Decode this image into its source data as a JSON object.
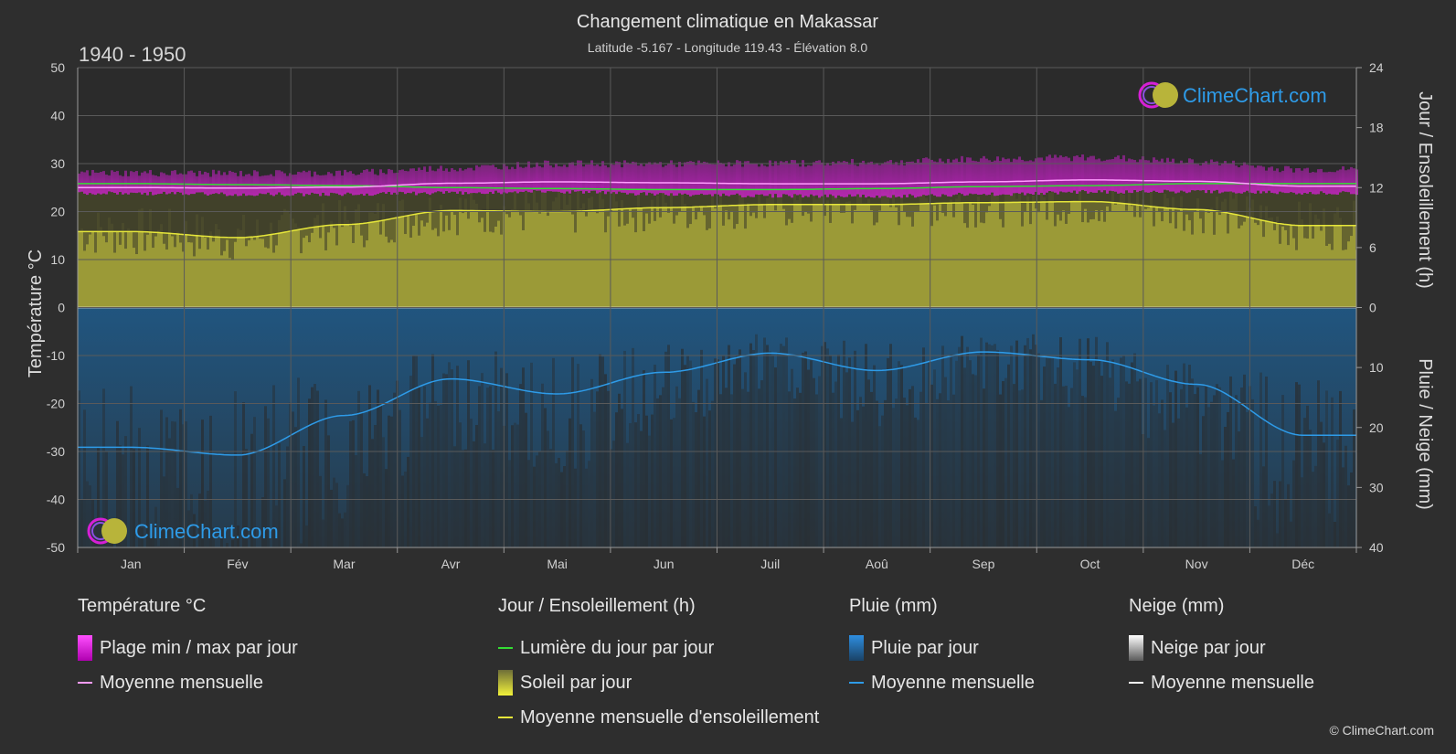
{
  "header": {
    "title": "Changement climatique en Makassar",
    "subtitle": "Latitude -5.167 - Longitude 119.43 - Élévation 8.0",
    "period": "1940 - 1950"
  },
  "brand": {
    "logo_text": "ClimeChart.com",
    "copyright": "© ClimeChart.com"
  },
  "colors": {
    "background": "#2e2e2e",
    "temp_range": "#d61fd6",
    "temp_mean": "#ff9cff",
    "daylight": "#33dd33",
    "sunshine_fill": "#a9a83a",
    "sunshine_mean": "#e6e63a",
    "rain_fill": "#1e5f93",
    "rain_mean": "#2e9be8",
    "snow_mean": "#ffffff"
  },
  "chart_data": {
    "type": "area",
    "categories": [
      "Jan",
      "Fév",
      "Mar",
      "Avr",
      "Mai",
      "Jun",
      "Juil",
      "Aoû",
      "Sep",
      "Oct",
      "Nov",
      "Déc"
    ],
    "axes": {
      "left": {
        "label": "Température °C",
        "ylim": [
          -50,
          50
        ],
        "ticks": [
          50,
          40,
          30,
          20,
          10,
          0,
          -10,
          -20,
          -30,
          -40,
          -50
        ]
      },
      "right_top": {
        "label": "Jour / Ensoleillement (h)",
        "ylim": [
          0,
          24
        ],
        "ticks": [
          24,
          18,
          12,
          6,
          0
        ]
      },
      "right_bottom": {
        "label": "Pluie / Neige (mm)",
        "ylim": [
          0,
          40
        ],
        "ticks": [
          10,
          20,
          30,
          40
        ]
      }
    },
    "grid": true,
    "series": [
      {
        "name": "Plage min / max par jour",
        "unit": "°C",
        "min": [
          24.2,
          24.0,
          24.0,
          24.3,
          24.5,
          24.0,
          23.7,
          23.6,
          24.0,
          24.5,
          24.6,
          24.3
        ],
        "max": [
          27.3,
          27.2,
          27.3,
          28.3,
          29.2,
          29.2,
          29.3,
          29.5,
          30.2,
          30.5,
          29.6,
          28.0
        ]
      },
      {
        "name": "Moyenne mensuelle",
        "unit": "°C",
        "values": [
          25.0,
          24.9,
          25.1,
          25.9,
          26.2,
          26.0,
          25.8,
          25.8,
          26.2,
          26.6,
          26.3,
          25.3
        ]
      },
      {
        "name": "Lumière du jour par jour",
        "unit": "h",
        "values": [
          12.4,
          12.3,
          12.2,
          12.0,
          11.9,
          11.8,
          11.8,
          11.9,
          12.1,
          12.2,
          12.4,
          12.4
        ]
      },
      {
        "name": "Moyenne mensuelle d'ensoleillement",
        "unit": "h",
        "values": [
          7.6,
          7.0,
          8.3,
          9.7,
          9.6,
          10.0,
          10.3,
          10.3,
          10.5,
          10.6,
          9.8,
          8.2
        ]
      },
      {
        "name": "Pluie / Moyenne mensuelle",
        "unit": "mm",
        "values": [
          23.3,
          24.6,
          18.0,
          11.9,
          14.4,
          10.8,
          7.6,
          10.5,
          7.4,
          8.7,
          12.8,
          21.3
        ]
      },
      {
        "name": "Neige / Moyenne mensuelle",
        "unit": "mm",
        "values": [
          0,
          0,
          0,
          0,
          0,
          0,
          0,
          0,
          0,
          0,
          0,
          0
        ]
      }
    ]
  },
  "legend": {
    "temperature": {
      "title": "Température °C",
      "range": "Plage min / max par jour",
      "mean": "Moyenne mensuelle"
    },
    "sun": {
      "title": "Jour / Ensoleillement (h)",
      "daylight": "Lumière du jour par jour",
      "sunshine": "Soleil par jour",
      "sunshine_mean": "Moyenne mensuelle d'ensoleillement"
    },
    "rain": {
      "title": "Pluie (mm)",
      "daily": "Pluie par jour",
      "mean": "Moyenne mensuelle"
    },
    "snow": {
      "title": "Neige (mm)",
      "daily": "Neige par jour",
      "mean": "Moyenne mensuelle"
    }
  }
}
